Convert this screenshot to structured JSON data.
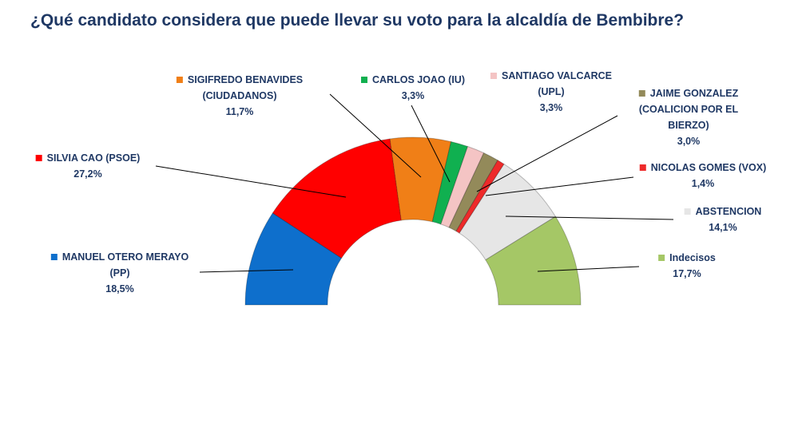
{
  "chart_data": {
    "type": "pie",
    "variant": "half-donut",
    "title": "¿Qué candidato considera que puede llevar su voto para la alcaldía de Bembibre?",
    "slices": [
      {
        "label": [
          "MANUEL OTERO MERAYO",
          "(PP)"
        ],
        "value": 18.5,
        "value_label": "18,5%",
        "color": "#0e6fcc"
      },
      {
        "label": [
          "SILVIA CAO (PSOE)"
        ],
        "value": 27.2,
        "value_label": "27,2%",
        "color": "#ff0000"
      },
      {
        "label": [
          "SIGIFREDO BENAVIDES",
          "(CIUDADANOS)"
        ],
        "value": 11.7,
        "value_label": "11,7%",
        "color": "#f07f17"
      },
      {
        "label": [
          "CARLOS JOAO (IU)"
        ],
        "value": 3.3,
        "value_label": "3,3%",
        "color": "#10b050"
      },
      {
        "label": [
          "SANTIAGO VALCARCE",
          "(UPL)"
        ],
        "value": 3.3,
        "value_label": "3,3%",
        "color": "#f4c4c4"
      },
      {
        "label": [
          "JAIME GONZALEZ",
          "(COALICION POR EL",
          "BIERZO)"
        ],
        "value": 3.0,
        "value_label": "3,0%",
        "color": "#938a5a"
      },
      {
        "label": [
          "NICOLAS GOMES (VOX)"
        ],
        "value": 1.4,
        "value_label": "1,4%",
        "color": "#ee2a2a"
      },
      {
        "label": [
          "ABSTENCION"
        ],
        "value": 14.1,
        "value_label": "14,1%",
        "color": "#e6e6e6"
      },
      {
        "label": [
          "Indecisos"
        ],
        "value": 17.7,
        "value_label": "17,7%",
        "color": "#a5c766"
      }
    ]
  }
}
